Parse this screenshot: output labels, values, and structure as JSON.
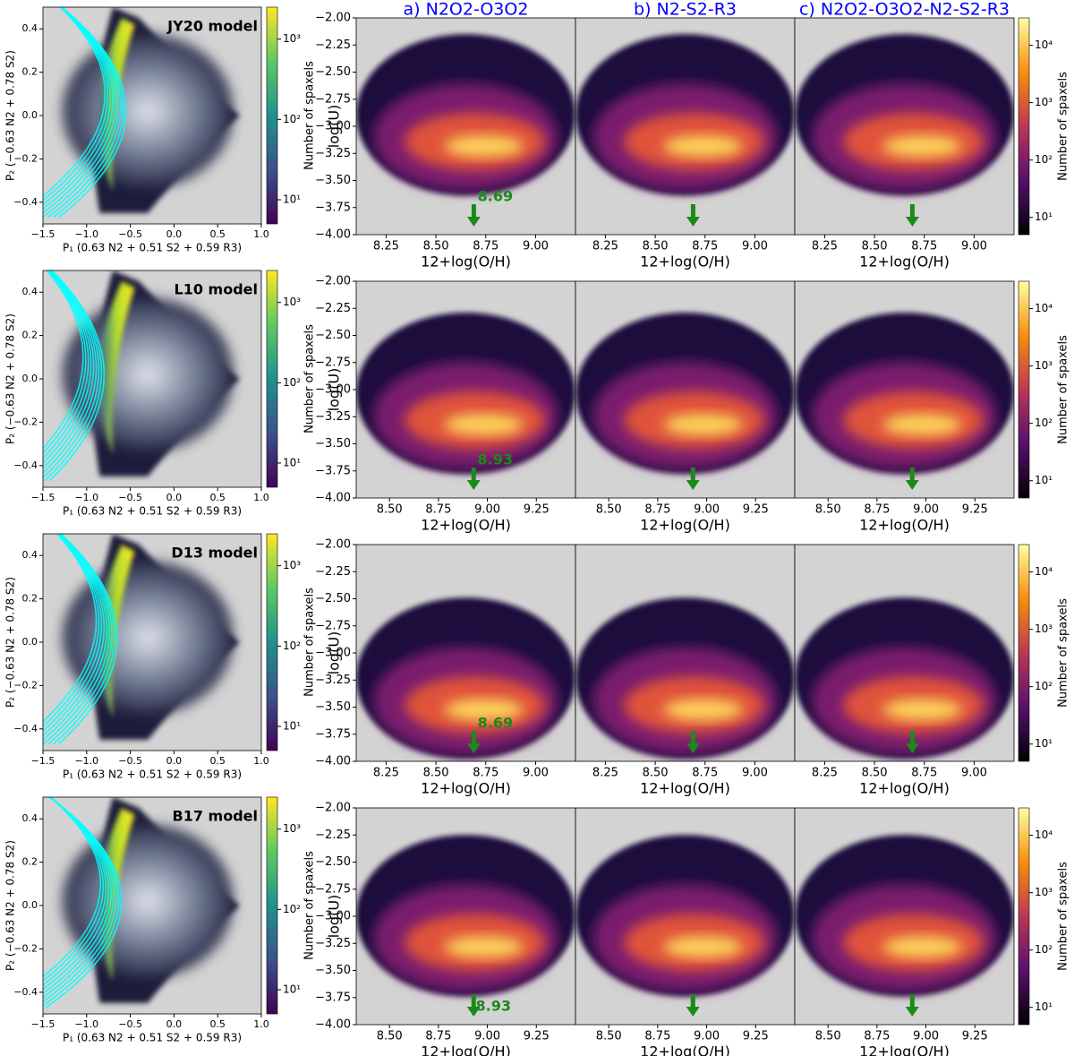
{
  "chart_data": [
    {
      "type": "density",
      "title": "JY20 model",
      "xlabel": "P₁ (0.63 N2 + 0.51 S2 + 0.59 R3)",
      "ylabel": "P₂ (−0.63 N2 + 0.78 S2)",
      "xlim": [
        -1.5,
        1.0
      ],
      "ylim": [
        -0.5,
        0.5
      ],
      "xticks": [
        {
          "value": -1.5,
          "label": "−1.5"
        },
        {
          "value": -1.0,
          "label": "−1.0"
        },
        {
          "value": -0.5,
          "label": "−0.5"
        },
        {
          "value": 0,
          "label": "0.0"
        },
        0.5,
        {
          "value": 1.0,
          "label": "1.0"
        }
      ],
      "yticks": [
        {
          "value": -0.4,
          "label": "−0.4"
        },
        {
          "value": -0.2,
          "label": "−0.2"
        },
        {
          "value": 0,
          "label": "0.0"
        },
        0.2,
        0.4
      ],
      "colorbar": {
        "label": "Number of spaxels",
        "colormap": "viridis",
        "lim": [
          5,
          2500
        ],
        "ticks": [
          {
            "value": 10,
            "label": "10¹"
          },
          {
            "value": 100,
            "label": "10²"
          },
          {
            "value": 1000,
            "label": "10³"
          }
        ]
      },
      "model_color": "#00ffff"
    },
    {
      "type": "heatmap",
      "titles": [
        "a) N2O2-O3O2",
        "b) N2-S2-R3",
        "c) N2O2-O3O2-N2-S2-R3"
      ],
      "title_color": "#0000ff",
      "xlabel": "12+log(O/H)",
      "ylabel": "log(U)",
      "xlim": [
        8.1,
        9.2
      ],
      "ylim": [
        -4,
        -2
      ],
      "xticks": [
        8.25,
        {
          "value": 8.5,
          "label": "8.50"
        },
        8.75,
        {
          "value": 9.0,
          "label": "9.00"
        }
      ],
      "yticks": [
        {
          "value": -4,
          "label": "−4.00"
        },
        {
          "value": -3.75,
          "label": "−3.75"
        },
        {
          "value": -3.5,
          "label": "−3.50"
        },
        {
          "value": -3.25,
          "label": "−3.25"
        },
        {
          "value": -3,
          "label": "−3.00"
        },
        {
          "value": -2.75,
          "label": "−2.75"
        },
        {
          "value": -2.5,
          "label": "−2.50"
        },
        {
          "value": -2.25,
          "label": "−2.25"
        },
        {
          "value": -2,
          "label": "−2.00"
        }
      ],
      "annotation": 8.69,
      "annotation_side": "above",
      "annotation_color": "#1a8a1a",
      "colorbar": {
        "label": "Number of spaxels",
        "colormap": "inferno",
        "lim": [
          5,
          30000
        ],
        "ticks": [
          {
            "value": 10,
            "label": "10¹"
          },
          {
            "value": 100,
            "label": "10²"
          },
          {
            "value": 1000,
            "label": "10³"
          },
          {
            "value": 10000,
            "label": "10⁴"
          }
        ]
      }
    },
    {
      "type": "density",
      "title": "L10 model",
      "xlabel": "P₁ (0.63 N2 + 0.51 S2 + 0.59 R3)",
      "ylabel": "P₂ (−0.63 N2 + 0.78 S2)",
      "xlim": [
        -1.5,
        1.0
      ],
      "ylim": [
        -0.5,
        0.5
      ],
      "xticks": [
        {
          "value": -1.5,
          "label": "−1.5"
        },
        {
          "value": -1.0,
          "label": "−1.0"
        },
        {
          "value": -0.5,
          "label": "−0.5"
        },
        {
          "value": 0,
          "label": "0.0"
        },
        0.5,
        {
          "value": 1.0,
          "label": "1.0"
        }
      ],
      "yticks": [
        {
          "value": -0.4,
          "label": "−0.4"
        },
        {
          "value": -0.2,
          "label": "−0.2"
        },
        {
          "value": 0,
          "label": "0.0"
        },
        0.2,
        0.4
      ],
      "colorbar": {
        "label": "Number of spaxels",
        "colormap": "viridis",
        "lim": [
          5,
          2500
        ],
        "ticks": [
          {
            "value": 10,
            "label": "10¹"
          },
          {
            "value": 100,
            "label": "10²"
          },
          {
            "value": 1000,
            "label": "10³"
          }
        ]
      },
      "model_color": "#00ffff"
    },
    {
      "type": "heatmap",
      "xlabel": "12+log(O/H)",
      "ylabel": "log(U)",
      "xlim": [
        8.33,
        9.45
      ],
      "ylim": [
        -4,
        -2
      ],
      "xticks": [
        {
          "value": 8.5,
          "label": "8.50"
        },
        8.75,
        {
          "value": 9.0,
          "label": "9.00"
        },
        9.25
      ],
      "yticks": [
        {
          "value": -4,
          "label": "−4.00"
        },
        {
          "value": -3.75,
          "label": "−3.75"
        },
        {
          "value": -3.5,
          "label": "−3.50"
        },
        {
          "value": -3.25,
          "label": "−3.25"
        },
        {
          "value": -3,
          "label": "−3.00"
        },
        {
          "value": -2.75,
          "label": "−2.75"
        },
        {
          "value": -2.5,
          "label": "−2.50"
        },
        {
          "value": -2.25,
          "label": "−2.25"
        },
        {
          "value": -2,
          "label": "−2.00"
        }
      ],
      "annotation": 8.93,
      "annotation_side": "above",
      "annotation_color": "#1a8a1a",
      "colorbar": {
        "label": "Number of spaxels",
        "colormap": "inferno",
        "lim": [
          5,
          30000
        ],
        "ticks": [
          {
            "value": 10,
            "label": "10¹"
          },
          {
            "value": 100,
            "label": "10²"
          },
          {
            "value": 1000,
            "label": "10³"
          },
          {
            "value": 10000,
            "label": "10⁴"
          }
        ]
      }
    },
    {
      "type": "density",
      "title": "D13 model",
      "xlabel": "P₁ (0.63 N2 + 0.51 S2 + 0.59 R3)",
      "ylabel": "P₂ (−0.63 N2 + 0.78 S2)",
      "xlim": [
        -1.5,
        1.0
      ],
      "ylim": [
        -0.5,
        0.5
      ],
      "xticks": [
        {
          "value": -1.5,
          "label": "−1.5"
        },
        {
          "value": -1.0,
          "label": "−1.0"
        },
        {
          "value": -0.5,
          "label": "−0.5"
        },
        {
          "value": 0,
          "label": "0.0"
        },
        0.5,
        {
          "value": 1.0,
          "label": "1.0"
        }
      ],
      "yticks": [
        {
          "value": -0.4,
          "label": "−0.4"
        },
        {
          "value": -0.2,
          "label": "−0.2"
        },
        {
          "value": 0,
          "label": "0.0"
        },
        0.2,
        0.4
      ],
      "colorbar": {
        "label": "Number of spaxels",
        "colormap": "viridis",
        "lim": [
          5,
          2500
        ],
        "ticks": [
          {
            "value": 10,
            "label": "10¹"
          },
          {
            "value": 100,
            "label": "10²"
          },
          {
            "value": 1000,
            "label": "10³"
          }
        ]
      },
      "model_color": "#00ffff"
    },
    {
      "type": "heatmap",
      "xlabel": "12+log(O/H)",
      "ylabel": "log(U)",
      "xlim": [
        8.1,
        9.2
      ],
      "ylim": [
        -4,
        -2
      ],
      "xticks": [
        8.25,
        {
          "value": 8.5,
          "label": "8.50"
        },
        8.75,
        {
          "value": 9.0,
          "label": "9.00"
        }
      ],
      "yticks": [
        {
          "value": -4,
          "label": "−4.00"
        },
        {
          "value": -3.75,
          "label": "−3.75"
        },
        {
          "value": -3.5,
          "label": "−3.50"
        },
        {
          "value": -3.25,
          "label": "−3.25"
        },
        {
          "value": -3,
          "label": "−3.00"
        },
        {
          "value": -2.75,
          "label": "−2.75"
        },
        {
          "value": -2.5,
          "label": "−2.50"
        },
        {
          "value": -2.25,
          "label": "−2.25"
        },
        {
          "value": -2,
          "label": "−2.00"
        }
      ],
      "annotation": 8.69,
      "annotation_side": "above",
      "annotation_color": "#1a8a1a",
      "colorbar": {
        "label": "Number of spaxels",
        "colormap": "inferno",
        "lim": [
          5,
          30000
        ],
        "ticks": [
          {
            "value": 10,
            "label": "10¹"
          },
          {
            "value": 100,
            "label": "10²"
          },
          {
            "value": 1000,
            "label": "10³"
          },
          {
            "value": 10000,
            "label": "10⁴"
          }
        ]
      }
    },
    {
      "type": "density",
      "title": "B17 model",
      "xlabel": "P₁ (0.63 N2 + 0.51 S2 + 0.59 R3)",
      "ylabel": "P₂ (−0.63 N2 + 0.78 S2)",
      "xlim": [
        -1.5,
        1.0
      ],
      "ylim": [
        -0.5,
        0.5
      ],
      "xticks": [
        {
          "value": -1.5,
          "label": "−1.5"
        },
        {
          "value": -1.0,
          "label": "−1.0"
        },
        {
          "value": -0.5,
          "label": "−0.5"
        },
        {
          "value": 0,
          "label": "0.0"
        },
        0.5,
        {
          "value": 1.0,
          "label": "1.0"
        }
      ],
      "yticks": [
        {
          "value": -0.4,
          "label": "−0.4"
        },
        {
          "value": -0.2,
          "label": "−0.2"
        },
        {
          "value": 0,
          "label": "0.0"
        },
        0.2,
        0.4
      ],
      "colorbar": {
        "label": "Number of spaxels",
        "colormap": "viridis",
        "lim": [
          5,
          2500
        ],
        "ticks": [
          {
            "value": 10,
            "label": "10¹"
          },
          {
            "value": 100,
            "label": "10²"
          },
          {
            "value": 1000,
            "label": "10³"
          }
        ]
      },
      "model_color": "#00ffff"
    },
    {
      "type": "heatmap",
      "xlabel": "12+log(O/H)",
      "ylabel": "log(U)",
      "xlim": [
        8.33,
        9.45
      ],
      "ylim": [
        -4,
        -2
      ],
      "xticks": [
        {
          "value": 8.5,
          "label": "8.50"
        },
        8.75,
        {
          "value": 9.0,
          "label": "9.00"
        },
        9.25
      ],
      "yticks": [
        {
          "value": -4,
          "label": "−4.00"
        },
        {
          "value": -3.75,
          "label": "−3.75"
        },
        {
          "value": -3.5,
          "label": "−3.50"
        },
        {
          "value": -3.25,
          "label": "−3.25"
        },
        {
          "value": -3,
          "label": "−3.00"
        },
        {
          "value": -2.75,
          "label": "−2.75"
        },
        {
          "value": -2.5,
          "label": "−2.50"
        },
        {
          "value": -2.25,
          "label": "−2.25"
        },
        {
          "value": -2,
          "label": "−2.00"
        }
      ],
      "annotation": 8.93,
      "annotation_side": "right",
      "annotation_color": "#1a8a1a",
      "colorbar": {
        "label": "Number of spaxels",
        "colormap": "inferno",
        "lim": [
          5,
          30000
        ],
        "ticks": [
          {
            "value": 10,
            "label": "10¹"
          },
          {
            "value": 100,
            "label": "10²"
          },
          {
            "value": 1000,
            "label": "10³"
          },
          {
            "value": 10000,
            "label": "10⁴"
          }
        ]
      }
    }
  ]
}
